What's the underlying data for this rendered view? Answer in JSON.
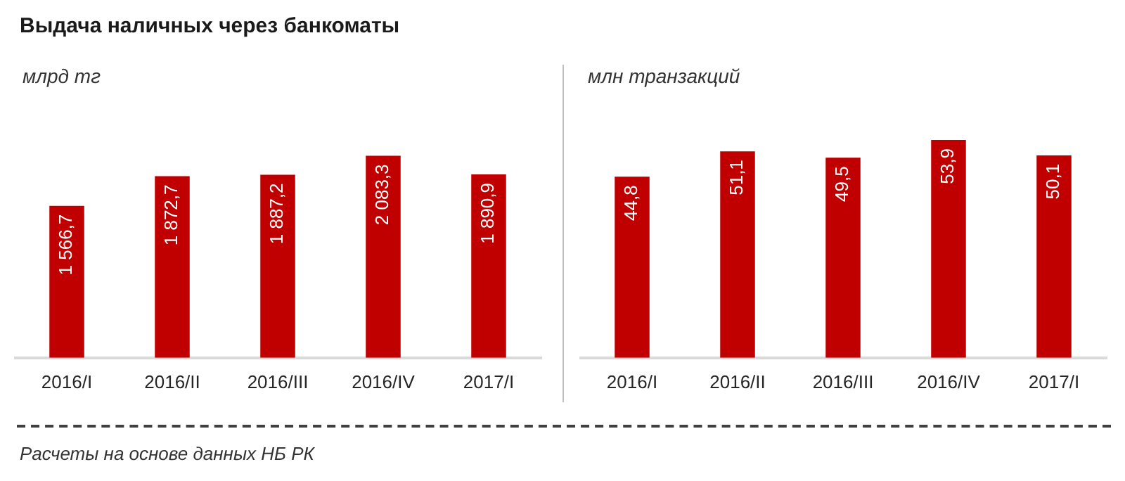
{
  "chart_data": [
    {
      "type": "bar",
      "title": "Выдача наличных через банкоматы",
      "ylabel": "млрд тг",
      "categories": [
        "2016/I",
        "2016/II",
        "2016/III",
        "2016/IV",
        "2017/I"
      ],
      "values": [
        1566.7,
        1872.7,
        1887.2,
        2083.3,
        1890.9
      ],
      "value_labels": [
        "1 566,7",
        "1 872,7",
        "1 887,2",
        "2 083,3",
        "1 890,9"
      ],
      "color": "#c00000",
      "tick_labels": "x",
      "grid": false,
      "legend": false,
      "annotations": [
        "Расчеты на основе данных НБ РК"
      ]
    },
    {
      "type": "bar",
      "ylabel": "млн транзакций",
      "categories": [
        "2016/I",
        "2016/II",
        "2016/III",
        "2016/IV",
        "2017/I"
      ],
      "values": [
        44.8,
        51.1,
        49.5,
        53.9,
        50.1
      ],
      "value_labels": [
        "44,8",
        "51,1",
        "49,5",
        "53,9",
        "50,1"
      ],
      "color": "#c00000",
      "tick_labels": "x",
      "grid": false,
      "legend": false
    }
  ]
}
